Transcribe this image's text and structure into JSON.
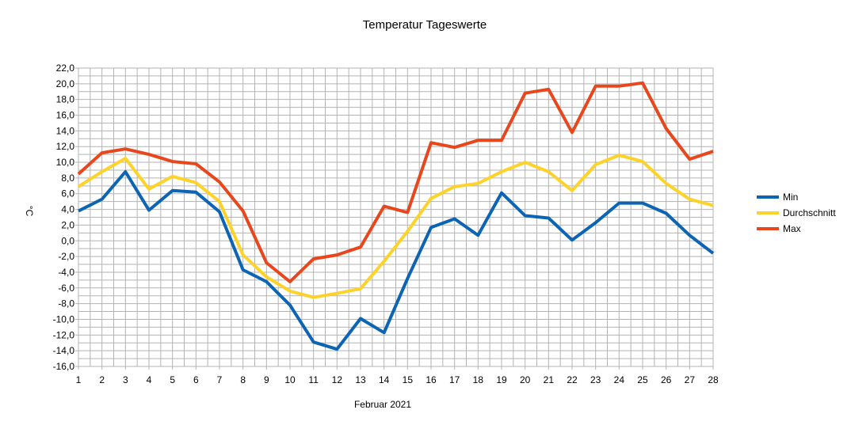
{
  "chart_data": {
    "type": "line",
    "title": "Temperatur Tageswerte",
    "xlabel": "Februar 2021",
    "ylabel": "°C",
    "x": [
      1,
      2,
      3,
      4,
      5,
      6,
      7,
      8,
      9,
      10,
      11,
      12,
      13,
      14,
      15,
      16,
      17,
      18,
      19,
      20,
      21,
      22,
      23,
      24,
      25,
      26,
      27,
      28
    ],
    "ylim": [
      -16,
      22
    ],
    "ytick_step": 2,
    "ytick_labels": [
      "-16,0",
      "-14,0",
      "-12,0",
      "-10,0",
      "-8,0",
      "-6,0",
      "-4,0",
      "-2,0",
      "0,0",
      "2,0",
      "4,0",
      "6,0",
      "8,0",
      "10,0",
      "12,0",
      "14,0",
      "16,0",
      "18,0",
      "20,0",
      "22,0"
    ],
    "grid": true,
    "legend_position": "right",
    "series": [
      {
        "name": "Min",
        "color": "#0b64b4",
        "values": [
          3.8,
          5.3,
          8.8,
          3.9,
          6.4,
          6.2,
          3.7,
          -3.7,
          -5.2,
          -8.2,
          -12.9,
          -13.8,
          -9.9,
          -11.7,
          -4.8,
          1.7,
          2.8,
          0.7,
          6.1,
          3.2,
          2.9,
          0.1,
          2.3,
          4.8,
          4.8,
          3.5,
          0.7,
          -1.6
        ]
      },
      {
        "name": "Durchschnitt",
        "color": "#fdd229",
        "values": [
          6.9,
          8.8,
          10.5,
          6.6,
          8.2,
          7.4,
          5.0,
          -1.8,
          -4.6,
          -6.4,
          -7.2,
          -6.7,
          -6.1,
          -2.6,
          1.2,
          5.4,
          6.9,
          7.3,
          8.8,
          10.0,
          8.8,
          6.4,
          9.7,
          10.9,
          10.1,
          7.3,
          5.3,
          4.5
        ]
      },
      {
        "name": "Max",
        "color": "#e8471d",
        "values": [
          8.5,
          11.2,
          11.7,
          11.0,
          10.1,
          9.8,
          7.5,
          3.8,
          -2.8,
          -5.2,
          -2.3,
          -1.8,
          -0.8,
          4.4,
          3.6,
          12.5,
          11.9,
          12.8,
          12.8,
          18.8,
          19.3,
          13.8,
          19.7,
          19.7,
          20.1,
          14.3,
          10.4,
          11.4
        ]
      }
    ]
  }
}
